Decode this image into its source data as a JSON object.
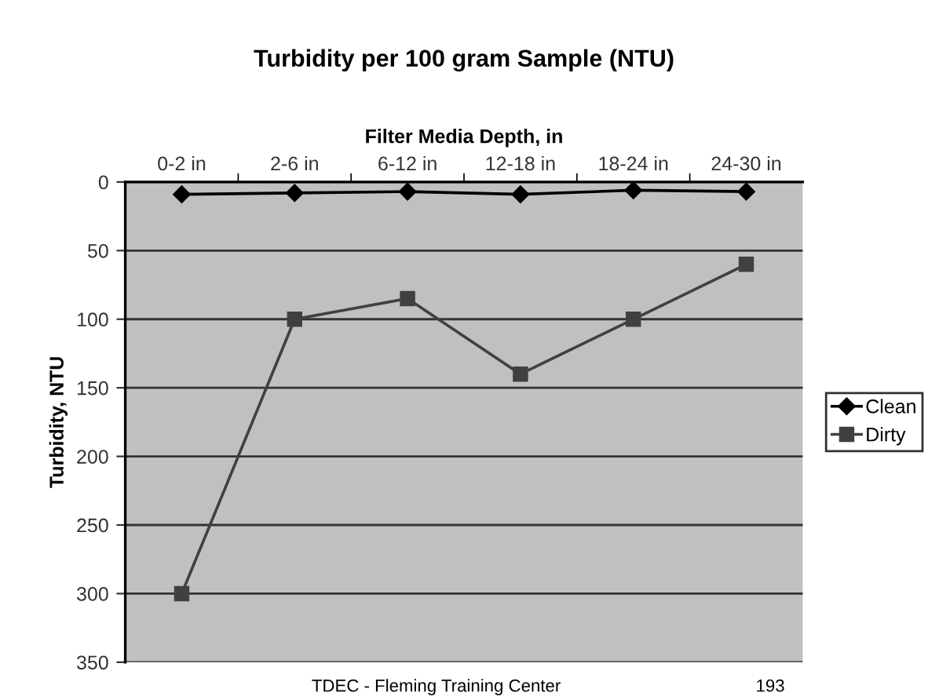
{
  "chart_data": {
    "type": "line",
    "title": "Turbidity per 100 gram Sample (NTU)",
    "xlabel": "Filter Media Depth, in",
    "ylabel": "Turbidity, NTU",
    "categories": [
      "0-2 in",
      "2-6 in",
      "6-12 in",
      "12-18 in",
      "18-24 in",
      "24-30 in"
    ],
    "series": [
      {
        "name": "Clean",
        "color": "#000000",
        "marker": "diamond",
        "values": [
          9,
          8,
          7,
          9,
          6,
          7
        ]
      },
      {
        "name": "Dirty",
        "color": "#404040",
        "marker": "square",
        "values": [
          300,
          100,
          85,
          140,
          100,
          60
        ]
      }
    ],
    "ylim": [
      350,
      0
    ],
    "yticks": [
      0,
      50,
      100,
      150,
      200,
      250,
      300,
      350
    ],
    "grid": "y",
    "legend": "right",
    "annotations": [
      "TDEC - Fleming Training Center",
      "193"
    ]
  }
}
